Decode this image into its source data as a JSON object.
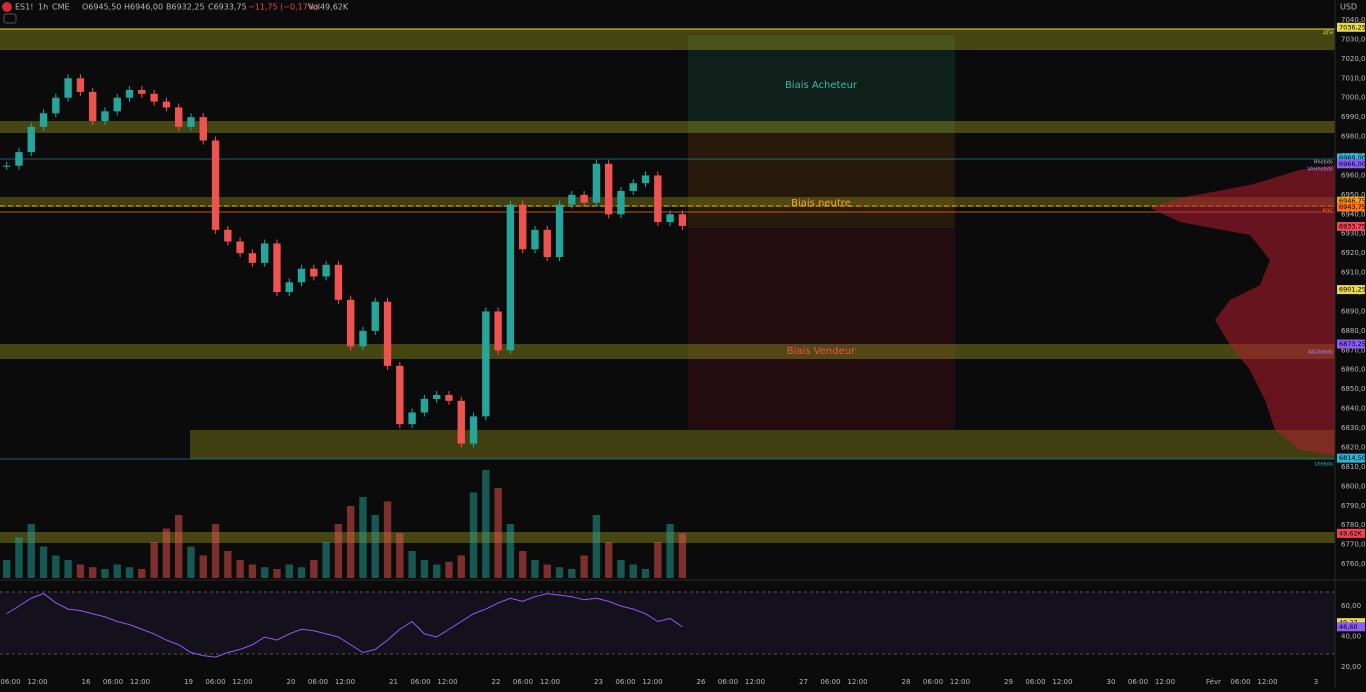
{
  "header": {
    "symbol": "ES1!",
    "interval": "1h",
    "exchange": "CME",
    "open": "O6945,50",
    "high": "H6946,00",
    "low": "B6932,25",
    "close": "C6933,75",
    "change": "−11,75 (−0,17%)",
    "volume": "Vol49,62K",
    "currency": "USD"
  },
  "zones": {
    "buy": "Biais Acheteur",
    "neutral": "Biais neutre",
    "sell": "Biais Vendeur"
  },
  "levels": {
    "ath": "ATH",
    "hhebdo": "Hhebdo",
    "vah": "VAHhebdo",
    "poc": "POC",
    "val": "VALhebdo",
    "lhebdo": "Lhebdo"
  },
  "price_axis": [
    "7040,00",
    "7030,00",
    "7020,00",
    "7010,00",
    "7000,00",
    "6990,00",
    "6980,00",
    "6970,00",
    "6960,00",
    "6950,00",
    "6940,00",
    "6930,00",
    "6920,00",
    "6910,00",
    "6900,00",
    "6890,00",
    "6880,00",
    "6870,00",
    "6860,00",
    "6850,00",
    "6840,00",
    "6830,00",
    "6820,00",
    "6810,00",
    "6800,00",
    "6790,00",
    "6780,00",
    "6770,00",
    "6760,00"
  ],
  "rsi_axis": [
    "60,00",
    "40,00",
    "20,00"
  ],
  "time_axis": [
    "06:00",
    "12:00",
    "16",
    "06:00",
    "12:00",
    "19",
    "06:00",
    "12:00",
    "20",
    "06:00",
    "12:00",
    "21",
    "06:00",
    "12:00",
    "22",
    "06:00",
    "12:00",
    "23",
    "06:00",
    "12:00",
    "26",
    "06:00",
    "12:00",
    "27",
    "06:00",
    "12:00",
    "28",
    "06:00",
    "12:00",
    "29",
    "06:00",
    "12:00",
    "30",
    "06:00",
    "12:00",
    "Févr",
    "06:00",
    "12:00",
    "3"
  ],
  "price_badges": [
    {
      "value": 7036.25,
      "label": "7036,25",
      "color": "#e8d84a"
    },
    {
      "value": 6969,
      "label": "6969,00",
      "color": "#2fb3d6"
    },
    {
      "value": 6966,
      "label": "6966,00",
      "color": "#8b5cf6"
    },
    {
      "value": 6946.75,
      "label": "6946,75",
      "color": "#f59e0b"
    },
    {
      "value": 6943.75,
      "label": "6943,75",
      "color": "#f97316"
    },
    {
      "value": 6933.75,
      "label": "6933,75",
      "color": "#ef4455"
    },
    {
      "value": 6901.25,
      "label": "6901,25",
      "color": "#e8d84a"
    },
    {
      "value": 6873.25,
      "label": "6873,25",
      "color": "#8b5cf6"
    },
    {
      "value": 6814.5,
      "label": "6814,50",
      "color": "#2fb3d6"
    }
  ],
  "volume_badge": {
    "value": 49.62,
    "label": "49,62K",
    "color": "#ef4455"
  },
  "rsi_badges": [
    {
      "value": 49.27,
      "label": "49,27",
      "color": "#e8d84a"
    },
    {
      "value": 46.6,
      "label": "46,60",
      "color": "#8b5cf6"
    }
  ],
  "closes": [
    6965,
    6972,
    6985,
    6992,
    7000,
    7010,
    7003,
    6988,
    6993,
    7000,
    7004,
    7002,
    6998,
    6995,
    6985,
    6990,
    6978,
    6932,
    6926,
    6920,
    6915,
    6925,
    6900,
    6905,
    6912,
    6908,
    6914,
    6896,
    6872,
    6880,
    6895,
    6862,
    6832,
    6838,
    6845,
    6847,
    6844,
    6822,
    6836,
    6890,
    6870,
    6945,
    6922,
    6932,
    6918,
    6945,
    6950,
    6946,
    6966,
    6940,
    6952,
    6956,
    6960,
    6936,
    6940,
    6934
  ],
  "volumes": [
    20,
    45,
    60,
    35,
    25,
    20,
    15,
    12,
    10,
    15,
    12,
    10,
    40,
    55,
    70,
    35,
    25,
    60,
    30,
    20,
    15,
    12,
    10,
    15,
    12,
    20,
    40,
    60,
    80,
    90,
    70,
    85,
    50,
    30,
    20,
    15,
    18,
    25,
    95,
    120,
    100,
    60,
    30,
    20,
    15,
    12,
    10,
    25,
    70,
    40,
    20,
    15,
    10,
    40,
    60,
    49.62
  ],
  "rsi": [
    55,
    60,
    65,
    68,
    62,
    58,
    57,
    55,
    53,
    50,
    48,
    45,
    42,
    38,
    35,
    30,
    28,
    27,
    30,
    32,
    35,
    40,
    38,
    42,
    45,
    44,
    42,
    40,
    35,
    30,
    32,
    38,
    45,
    50,
    42,
    40,
    45,
    50,
    55,
    58,
    62,
    65,
    63,
    66,
    68,
    67,
    66,
    64,
    65,
    63,
    60,
    58,
    55,
    50,
    52,
    46.6
  ]
}
